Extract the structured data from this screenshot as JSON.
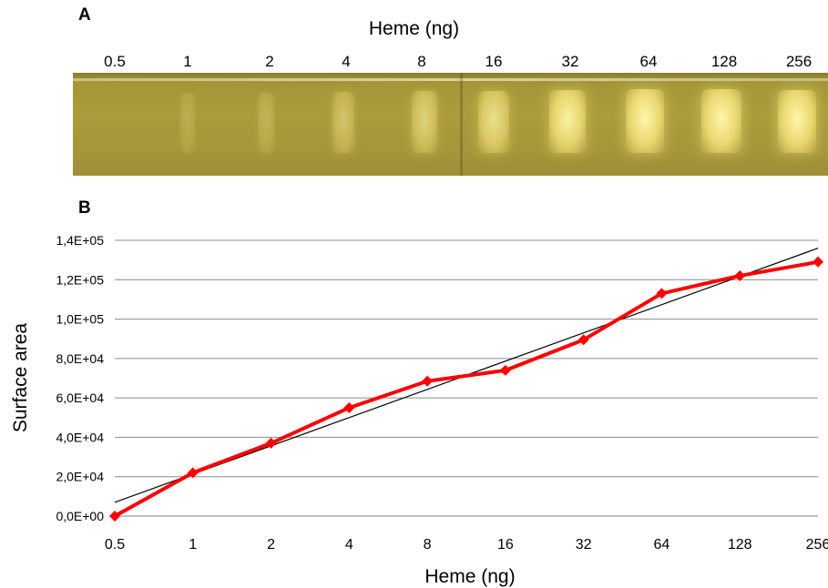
{
  "panel_a": {
    "letter": "A",
    "title": "Heme (ng)",
    "lanes": [
      {
        "label": "0.5",
        "intensity": 0.02
      },
      {
        "label": "1",
        "intensity": 0.06
      },
      {
        "label": "2",
        "intensity": 0.12
      },
      {
        "label": "4",
        "intensity": 0.3
      },
      {
        "label": "8",
        "intensity": 0.45
      },
      {
        "label": "16",
        "intensity": 0.6
      },
      {
        "label": "32",
        "intensity": 0.8
      },
      {
        "label": "64",
        "intensity": 0.9
      },
      {
        "label": "128",
        "intensity": 0.92
      },
      {
        "label": "256",
        "intensity": 0.85
      }
    ]
  },
  "panel_b": {
    "letter": "B"
  },
  "chart_data": {
    "type": "line",
    "xlabel": "Heme (ng)",
    "ylabel": "Surface area",
    "categories": [
      "0.5",
      "1",
      "2",
      "4",
      "8",
      "16",
      "32",
      "64",
      "128",
      "256"
    ],
    "yticks": [
      "0,0E+00",
      "2,0E+04",
      "4,0E+04",
      "6,0E+04",
      "8,0E+04",
      "1,0E+05",
      "1,2E+05",
      "1,4E+05"
    ],
    "ylim": [
      0,
      140000
    ],
    "grid": true,
    "series": [
      {
        "values": [
          0,
          22000,
          37000,
          55000,
          68500,
          74000,
          89500,
          113000,
          122000,
          129000
        ],
        "color": "#ff0000",
        "marker": "diamond"
      }
    ],
    "trendline": {
      "start": 7000,
      "end": 136000,
      "color": "#000000"
    }
  }
}
